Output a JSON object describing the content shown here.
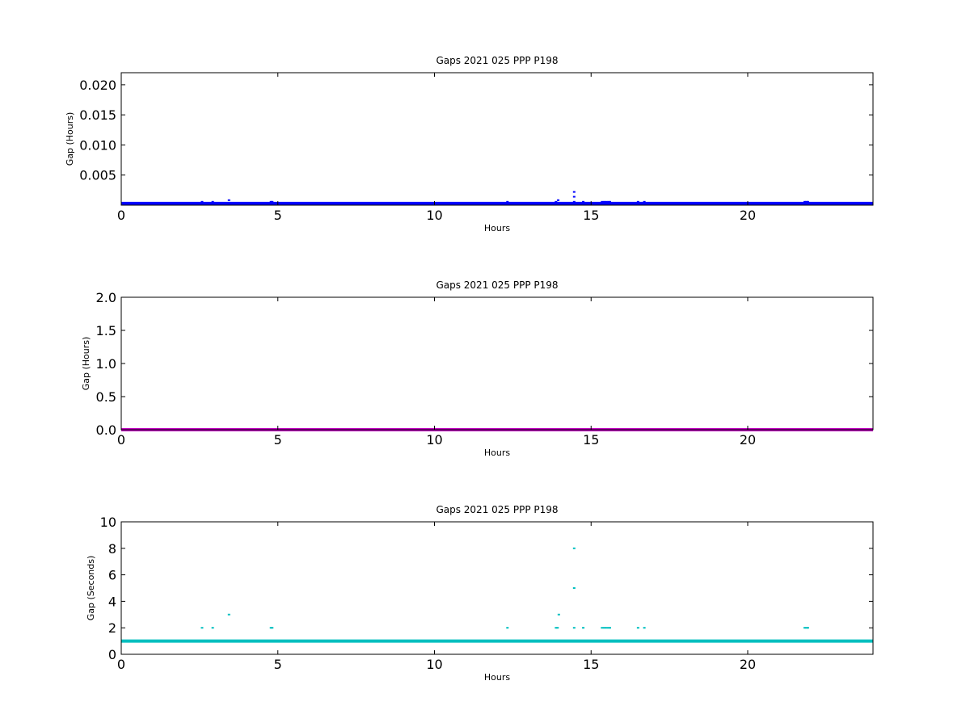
{
  "chart_data": [
    {
      "type": "scatter",
      "title": "Gaps 2021 025 PPP  P198",
      "xlabel": "Hours",
      "ylabel": "Gap (Hours)",
      "xlim": [
        0,
        24
      ],
      "ylim": [
        0,
        0.022
      ],
      "xticks": [
        0,
        5,
        10,
        15,
        20
      ],
      "yticks": [
        0.005,
        0.01,
        0.015,
        0.02
      ],
      "ytick_labels": [
        "0.005",
        "0.010",
        "0.015",
        "0.020"
      ],
      "grid": false,
      "color": "#0000ff",
      "baseline": {
        "y": 0.00028,
        "from": 0,
        "to": 24
      },
      "points": [
        [
          2.58,
          0.00056
        ],
        [
          2.92,
          0.00056
        ],
        [
          3.44,
          0.00083
        ],
        [
          4.78,
          0.00056
        ],
        [
          4.82,
          0.00056
        ],
        [
          12.33,
          0.00056
        ],
        [
          13.88,
          0.00056
        ],
        [
          13.95,
          0.00083
        ],
        [
          14.46,
          0.0022
        ],
        [
          14.46,
          0.0014
        ],
        [
          14.46,
          0.00056
        ],
        [
          14.75,
          0.00056
        ],
        [
          15.35,
          0.00056
        ],
        [
          15.42,
          0.00056
        ],
        [
          15.48,
          0.00056
        ],
        [
          15.55,
          0.00056
        ],
        [
          15.6,
          0.00056
        ],
        [
          16.5,
          0.00056
        ],
        [
          16.7,
          0.00056
        ],
        [
          21.82,
          0.00056
        ],
        [
          21.88,
          0.00056
        ],
        [
          21.92,
          0.00056
        ]
      ]
    },
    {
      "type": "scatter",
      "title": "Gaps 2021 025 PPP  P198",
      "xlabel": "Hours",
      "ylabel": "Gap (Hours)",
      "xlim": [
        0,
        24
      ],
      "ylim": [
        0,
        2.0
      ],
      "xticks": [
        0,
        5,
        10,
        15,
        20
      ],
      "yticks": [
        0.0,
        0.5,
        1.0,
        1.5,
        2.0
      ],
      "ytick_labels": [
        "0.0",
        "0.5",
        "1.0",
        "1.5",
        "2.0"
      ],
      "grid": false,
      "color": "#bf00bf",
      "baseline": {
        "y": 0.0003,
        "from": 0,
        "to": 24
      },
      "points": []
    },
    {
      "type": "scatter",
      "title": "Gaps 2021 025 PPP  P198",
      "xlabel": "Hours",
      "ylabel": "Gap (Seconds)",
      "xlim": [
        0,
        24
      ],
      "ylim": [
        0,
        10
      ],
      "xticks": [
        0,
        5,
        10,
        15,
        20
      ],
      "yticks": [
        0,
        2,
        4,
        6,
        8,
        10
      ],
      "ytick_labels": [
        "0",
        "2",
        "4",
        "6",
        "8",
        "10"
      ],
      "grid": false,
      "color": "#00bfbf",
      "baseline": {
        "y": 1,
        "from": 0,
        "to": 24
      },
      "points": [
        [
          2.58,
          2
        ],
        [
          2.92,
          2
        ],
        [
          3.44,
          3
        ],
        [
          4.78,
          2
        ],
        [
          4.82,
          2
        ],
        [
          12.33,
          2
        ],
        [
          13.88,
          2
        ],
        [
          13.93,
          2
        ],
        [
          13.97,
          3
        ],
        [
          14.46,
          8
        ],
        [
          14.46,
          5
        ],
        [
          14.46,
          2
        ],
        [
          14.75,
          2
        ],
        [
          15.35,
          2
        ],
        [
          15.42,
          2
        ],
        [
          15.48,
          2
        ],
        [
          15.55,
          2
        ],
        [
          15.6,
          2
        ],
        [
          16.5,
          2
        ],
        [
          16.7,
          2
        ],
        [
          21.82,
          2
        ],
        [
          21.88,
          2
        ],
        [
          21.92,
          2
        ]
      ]
    }
  ]
}
